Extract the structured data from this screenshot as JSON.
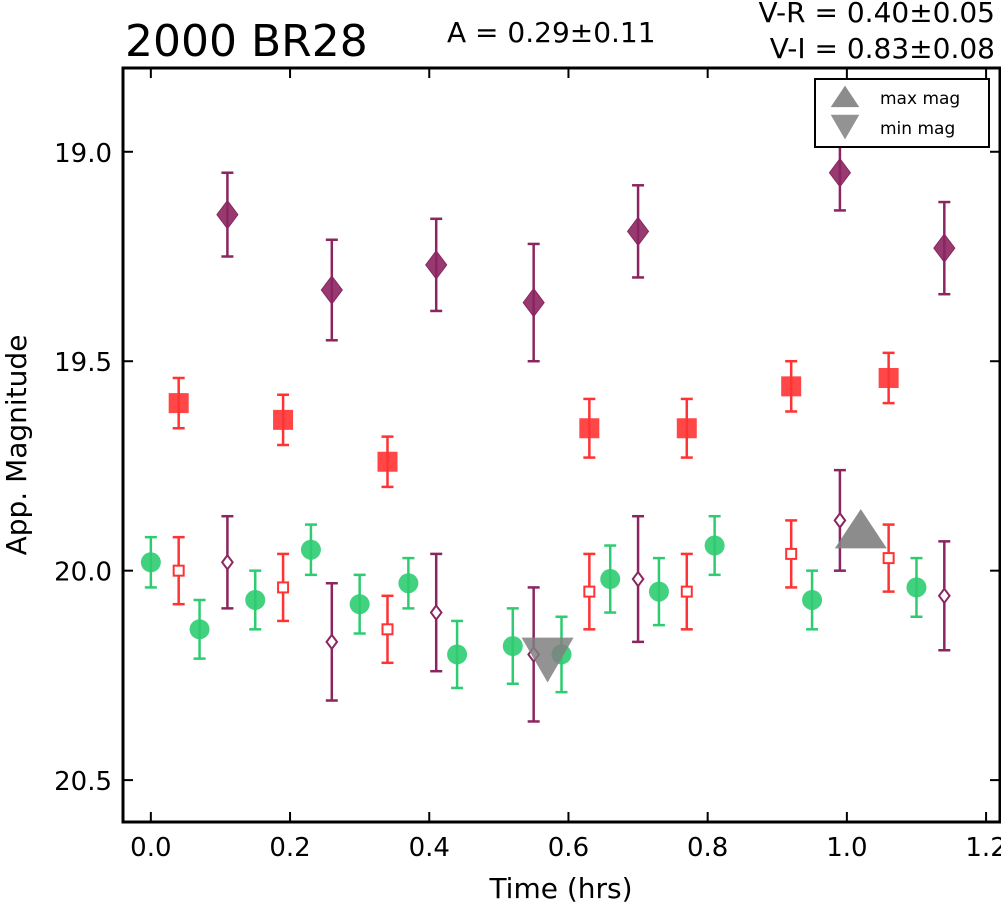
{
  "chart_data": {
    "type": "scatter",
    "title": "2000 BR28",
    "amplitude_text": "A  = 0.29±0.11",
    "color_text": [
      "V-R = 0.40±0.05",
      "V-I  = 0.83±0.08"
    ],
    "xlabel": "Time (hrs)",
    "ylabel": "App. Magnitude",
    "xlim": [
      -0.04,
      1.22
    ],
    "ylim": [
      20.6,
      18.8
    ],
    "y_inverted": true,
    "xticks": [
      0.0,
      0.2,
      0.4,
      0.6,
      0.8,
      1.0,
      1.2
    ],
    "xtick_labels": [
      "0.0",
      "0.2",
      "0.4",
      "0.6",
      "0.8",
      "1.0",
      "1.2"
    ],
    "yticks": [
      19.0,
      19.5,
      20.0,
      20.5
    ],
    "ytick_labels": [
      "19.0",
      "19.5",
      "20.0",
      "20.5"
    ],
    "grid": false,
    "legend_position": "top-right",
    "legend": [
      {
        "label": "max mag",
        "marker": "triangle-up",
        "color": "#808080"
      },
      {
        "label": "min mag",
        "marker": "triangle-down",
        "color": "#808080"
      }
    ],
    "series": [
      {
        "marker": "diamond-filled",
        "color": "#8b2560",
        "points": [
          {
            "x": 0.11,
            "y": 19.15,
            "err": 0.1
          },
          {
            "x": 0.26,
            "y": 19.33,
            "err": 0.12
          },
          {
            "x": 0.41,
            "y": 19.27,
            "err": 0.11
          },
          {
            "x": 0.55,
            "y": 19.36,
            "err": 0.14
          },
          {
            "x": 0.7,
            "y": 19.19,
            "err": 0.11
          },
          {
            "x": 0.99,
            "y": 19.05,
            "err": 0.09
          },
          {
            "x": 1.14,
            "y": 19.23,
            "err": 0.11
          }
        ]
      },
      {
        "marker": "square-filled",
        "color": "#ff3333",
        "points": [
          {
            "x": 0.04,
            "y": 19.6,
            "err": 0.06
          },
          {
            "x": 0.19,
            "y": 19.64,
            "err": 0.06
          },
          {
            "x": 0.34,
            "y": 19.74,
            "err": 0.06
          },
          {
            "x": 0.63,
            "y": 19.66,
            "err": 0.07
          },
          {
            "x": 0.77,
            "y": 19.66,
            "err": 0.07
          },
          {
            "x": 0.92,
            "y": 19.56,
            "err": 0.06
          },
          {
            "x": 1.06,
            "y": 19.54,
            "err": 0.06
          }
        ]
      },
      {
        "marker": "circle-filled",
        "color": "#2ecc71",
        "points": [
          {
            "x": 0.0,
            "y": 19.98,
            "err": 0.06
          },
          {
            "x": 0.07,
            "y": 20.14,
            "err": 0.07
          },
          {
            "x": 0.15,
            "y": 20.07,
            "err": 0.07
          },
          {
            "x": 0.23,
            "y": 19.95,
            "err": 0.06
          },
          {
            "x": 0.3,
            "y": 20.08,
            "err": 0.07
          },
          {
            "x": 0.37,
            "y": 20.03,
            "err": 0.06
          },
          {
            "x": 0.44,
            "y": 20.2,
            "err": 0.08
          },
          {
            "x": 0.52,
            "y": 20.18,
            "err": 0.09
          },
          {
            "x": 0.59,
            "y": 20.2,
            "err": 0.09
          },
          {
            "x": 0.66,
            "y": 20.02,
            "err": 0.08
          },
          {
            "x": 0.73,
            "y": 20.05,
            "err": 0.08
          },
          {
            "x": 0.81,
            "y": 19.94,
            "err": 0.07
          },
          {
            "x": 0.95,
            "y": 20.07,
            "err": 0.07
          },
          {
            "x": 1.1,
            "y": 20.04,
            "err": 0.07
          }
        ]
      },
      {
        "marker": "square-open",
        "color": "#ff3333",
        "points": [
          {
            "x": 0.04,
            "y": 20.0,
            "err": 0.08
          },
          {
            "x": 0.19,
            "y": 20.04,
            "err": 0.08
          },
          {
            "x": 0.34,
            "y": 20.14,
            "err": 0.08
          },
          {
            "x": 0.63,
            "y": 20.05,
            "err": 0.09
          },
          {
            "x": 0.77,
            "y": 20.05,
            "err": 0.09
          },
          {
            "x": 0.92,
            "y": 19.96,
            "err": 0.08
          },
          {
            "x": 1.06,
            "y": 19.97,
            "err": 0.08
          }
        ]
      },
      {
        "marker": "diamond-open",
        "color": "#8b2560",
        "points": [
          {
            "x": 0.11,
            "y": 19.98,
            "err": 0.11
          },
          {
            "x": 0.26,
            "y": 20.17,
            "err": 0.14
          },
          {
            "x": 0.41,
            "y": 20.1,
            "err": 0.14
          },
          {
            "x": 0.55,
            "y": 20.2,
            "err": 0.16
          },
          {
            "x": 0.7,
            "y": 20.02,
            "err": 0.15
          },
          {
            "x": 0.99,
            "y": 19.88,
            "err": 0.12
          },
          {
            "x": 1.14,
            "y": 20.06,
            "err": 0.13
          }
        ]
      },
      {
        "marker": "triangle-up",
        "color": "#808080",
        "points": [
          {
            "x": 1.02,
            "y": 19.92
          }
        ]
      },
      {
        "marker": "triangle-down",
        "color": "#808080",
        "points": [
          {
            "x": 0.57,
            "y": 20.2
          }
        ]
      }
    ]
  }
}
